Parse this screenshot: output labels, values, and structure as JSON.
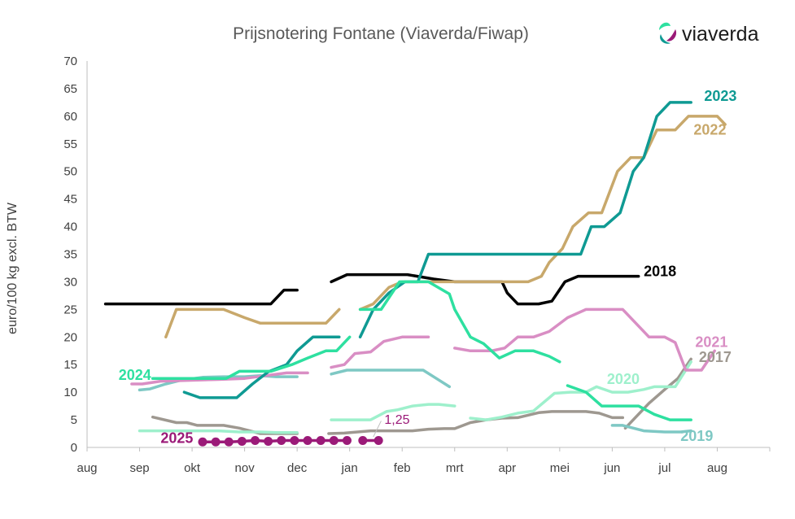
{
  "brand": {
    "logo_text": "viaverda"
  },
  "chart_data": {
    "type": "line",
    "title": "Prijsnotering Fontane (Viaverda/Fiwap)",
    "xlabel": "",
    "ylabel": "euro/100 kg excl. BTW",
    "ylim": [
      0,
      70
    ],
    "yticks": [
      0,
      5,
      10,
      15,
      20,
      25,
      30,
      35,
      40,
      45,
      50,
      55,
      60,
      65,
      70
    ],
    "x_unit": "months from 1 aug (season aug–aug)",
    "xlim": [
      0,
      13
    ],
    "months": [
      "aug",
      "sep",
      "okt",
      "nov",
      "dec",
      "jan",
      "feb",
      "mrt",
      "apr",
      "mei",
      "jun",
      "jul",
      "aug"
    ],
    "grid": false,
    "legend": "direct labels at line ends",
    "series": [
      {
        "name": "2018",
        "color": "#000000",
        "label_at": [
          10.6,
          31.0
        ],
        "segments": [
          [
            [
              0.35,
              26
            ],
            [
              3.5,
              26
            ],
            [
              3.75,
              28.5
            ],
            [
              4.0,
              28.5
            ]
          ],
          [
            [
              4.65,
              30
            ],
            [
              4.95,
              31.3
            ],
            [
              6.1,
              31.3
            ],
            [
              6.6,
              30.5
            ],
            [
              7.0,
              30
            ],
            [
              7.3,
              30
            ],
            [
              7.4,
              30
            ],
            [
              7.7,
              30
            ],
            [
              7.9,
              30
            ],
            [
              8.0,
              28
            ],
            [
              8.2,
              26
            ],
            [
              8.6,
              26
            ],
            [
              8.85,
              26.5
            ],
            [
              9.1,
              30
            ],
            [
              9.35,
              31
            ],
            [
              9.9,
              31
            ],
            [
              10.3,
              31
            ],
            [
              10.5,
              31
            ]
          ]
        ]
      },
      {
        "name": "2017",
        "color": "#9e9890",
        "label_at": [
          11.65,
          15.5
        ],
        "segments": [
          [
            [
              1.25,
              5.5
            ],
            [
              1.7,
              4.5
            ],
            [
              1.9,
              4.5
            ],
            [
              2.1,
              4.0
            ],
            [
              2.6,
              4.0
            ],
            [
              2.9,
              3.5
            ],
            [
              3.3,
              2.5
            ],
            [
              4.0,
              2.5
            ]
          ],
          [
            [
              4.6,
              2.5
            ],
            [
              4.9,
              2.6
            ],
            [
              5.4,
              3.0
            ],
            [
              6.2,
              3.0
            ],
            [
              6.5,
              3.3
            ],
            [
              6.8,
              3.4
            ],
            [
              7.0,
              3.4
            ],
            [
              7.3,
              4.5
            ],
            [
              7.6,
              5.0
            ],
            [
              7.9,
              5.3
            ],
            [
              8.2,
              5.4
            ],
            [
              8.6,
              6.3
            ],
            [
              8.85,
              6.5
            ],
            [
              9.3,
              6.5
            ],
            [
              9.5,
              6.5
            ],
            [
              9.75,
              6.2
            ],
            [
              10.0,
              5.4
            ],
            [
              10.2,
              5.4
            ]
          ],
          [
            [
              10.25,
              3.5
            ],
            [
              10.45,
              5.5
            ],
            [
              10.7,
              8.0
            ],
            [
              11.0,
              10.5
            ],
            [
              11.25,
              12.5
            ],
            [
              11.5,
              16.0
            ]
          ]
        ]
      },
      {
        "name": "2019",
        "color": "#7ec8c4",
        "label_at": [
          11.3,
          1.2
        ],
        "segments": [
          [
            [
              1.0,
              10.4
            ],
            [
              1.2,
              10.6
            ],
            [
              1.5,
              11.5
            ],
            [
              1.8,
              12.2
            ],
            [
              2.2,
              12.7
            ],
            [
              2.6,
              12.8
            ],
            [
              3.0,
              12.8
            ],
            [
              3.3,
              13.0
            ],
            [
              3.6,
              12.8
            ],
            [
              4.0,
              12.8
            ]
          ],
          [
            [
              4.65,
              13.3
            ],
            [
              4.95,
              14.0
            ],
            [
              5.3,
              14.0
            ],
            [
              6.4,
              14.0
            ],
            [
              6.65,
              12.5
            ],
            [
              6.9,
              11.0
            ]
          ],
          [
            [
              10.0,
              4.0
            ],
            [
              10.2,
              4.0
            ],
            [
              10.6,
              3.0
            ],
            [
              11.0,
              2.8
            ],
            [
              11.3,
              2.8
            ],
            [
              11.5,
              3.0
            ]
          ]
        ]
      },
      {
        "name": "2020",
        "color": "#9ef0cc",
        "label_at": [
          9.9,
          11.5
        ],
        "segments": [
          [
            [
              1.0,
              3.0
            ],
            [
              1.2,
              3.0
            ],
            [
              1.8,
              3.0
            ],
            [
              2.5,
              3.0
            ],
            [
              2.9,
              2.8
            ],
            [
              3.3,
              2.8
            ],
            [
              3.6,
              2.7
            ],
            [
              4.0,
              2.7
            ]
          ],
          [
            [
              4.65,
              5.0
            ],
            [
              4.95,
              5.0
            ],
            [
              5.4,
              5.0
            ],
            [
              5.7,
              6.5
            ],
            [
              5.9,
              6.8
            ],
            [
              6.2,
              7.5
            ],
            [
              6.5,
              7.8
            ],
            [
              6.7,
              7.8
            ],
            [
              7.0,
              7.5
            ]
          ],
          [
            [
              7.3,
              5.3
            ],
            [
              7.6,
              5.0
            ],
            [
              7.9,
              5.5
            ],
            [
              8.2,
              6.2
            ],
            [
              8.5,
              6.6
            ],
            [
              8.9,
              9.8
            ],
            [
              9.2,
              10.0
            ],
            [
              9.5,
              10.0
            ],
            [
              9.7,
              11.0
            ],
            [
              10.0,
              10.0
            ],
            [
              10.3,
              10.0
            ],
            [
              10.6,
              10.5
            ],
            [
              10.8,
              11.0
            ],
            [
              11.2,
              11.0
            ],
            [
              11.5,
              15.5
            ]
          ]
        ]
      },
      {
        "name": "2021",
        "color": "#d98ec4",
        "label_at": [
          11.58,
          18.2
        ],
        "segments": [
          [
            [
              0.85,
              11.5
            ],
            [
              1.05,
              11.5
            ],
            [
              1.4,
              12.0
            ],
            [
              2.5,
              12.3
            ],
            [
              3.0,
              12.5
            ],
            [
              3.4,
              13.0
            ],
            [
              3.8,
              13.5
            ],
            [
              4.2,
              13.5
            ]
          ],
          [
            [
              4.65,
              14.5
            ],
            [
              4.9,
              15.0
            ],
            [
              5.1,
              17.0
            ],
            [
              5.4,
              17.3
            ],
            [
              5.65,
              19.2
            ],
            [
              6.0,
              20.0
            ],
            [
              6.3,
              20.0
            ],
            [
              6.5,
              20.0
            ]
          ],
          [
            [
              7.0,
              18.0
            ],
            [
              7.3,
              17.5
            ],
            [
              7.7,
              17.5
            ],
            [
              7.95,
              18.0
            ],
            [
              8.2,
              20.0
            ],
            [
              8.5,
              20.0
            ],
            [
              8.8,
              21.0
            ],
            [
              9.15,
              23.5
            ],
            [
              9.5,
              25.0
            ],
            [
              10.0,
              25.0
            ],
            [
              10.2,
              25.0
            ],
            [
              10.45,
              22.5
            ],
            [
              10.7,
              20.0
            ],
            [
              11.0,
              20.0
            ],
            [
              11.2,
              19.0
            ],
            [
              11.4,
              14.0
            ],
            [
              11.7,
              14.0
            ],
            [
              11.95,
              17.5
            ]
          ]
        ]
      },
      {
        "name": "2022",
        "color": "#c8a86b",
        "label_at": [
          11.55,
          56.7
        ],
        "segments": [
          [
            [
              1.5,
              20.0
            ],
            [
              1.7,
              25.0
            ],
            [
              2.3,
              25.0
            ],
            [
              2.6,
              25.0
            ],
            [
              3.0,
              23.5
            ],
            [
              3.3,
              22.5
            ],
            [
              3.8,
              22.5
            ],
            [
              4.0,
              22.5
            ],
            [
              4.2,
              22.5
            ],
            [
              4.55,
              22.5
            ],
            [
              4.8,
              25.0
            ]
          ],
          [
            [
              5.2,
              25.0
            ],
            [
              5.45,
              26.0
            ],
            [
              5.75,
              29.0
            ],
            [
              6.0,
              30.0
            ],
            [
              6.5,
              30.0
            ],
            [
              7.0,
              30.0
            ],
            [
              7.3,
              30.0
            ],
            [
              7.6,
              30.0
            ],
            [
              8.0,
              30.0
            ],
            [
              8.4,
              30.0
            ],
            [
              8.65,
              31.0
            ],
            [
              8.8,
              33.5
            ],
            [
              9.05,
              36.0
            ],
            [
              9.25,
              40.0
            ],
            [
              9.55,
              42.5
            ],
            [
              9.8,
              42.5
            ],
            [
              10.1,
              50.0
            ],
            [
              10.35,
              52.5
            ],
            [
              10.6,
              52.5
            ],
            [
              10.85,
              57.5
            ],
            [
              11.2,
              57.5
            ],
            [
              11.45,
              60.0
            ],
            [
              11.8,
              60.0
            ],
            [
              12.0,
              60.0
            ],
            [
              12.15,
              58.5
            ]
          ]
        ]
      },
      {
        "name": "2023",
        "color": "#0f9a93",
        "label_at": [
          11.75,
          62.8
        ],
        "segments": [
          [
            [
              1.85,
              10.0
            ],
            [
              2.15,
              9.0
            ],
            [
              2.6,
              9.0
            ],
            [
              2.85,
              9.0
            ],
            [
              3.15,
              11.5
            ],
            [
              3.45,
              13.7
            ],
            [
              3.8,
              15.0
            ],
            [
              4.0,
              17.5
            ],
            [
              4.3,
              20.0
            ],
            [
              4.8,
              20.0
            ]
          ],
          [
            [
              5.2,
              20.0
            ],
            [
              5.45,
              25.0
            ],
            [
              5.75,
              28.0
            ],
            [
              6.05,
              30.0
            ],
            [
              6.3,
              30.0
            ],
            [
              6.5,
              35.0
            ],
            [
              7.0,
              35.0
            ],
            [
              8.0,
              35.0
            ],
            [
              9.0,
              35.0
            ],
            [
              9.4,
              35.0
            ],
            [
              9.6,
              40.0
            ],
            [
              9.85,
              40.0
            ],
            [
              10.15,
              42.5
            ],
            [
              10.4,
              50.0
            ],
            [
              10.6,
              52.5
            ],
            [
              10.85,
              60.0
            ],
            [
              11.1,
              62.5
            ],
            [
              11.5,
              62.5
            ]
          ]
        ]
      },
      {
        "name": "2024",
        "color": "#2ee0a0",
        "label_at": [
          0.6,
          12.2
        ],
        "segments": [
          [
            [
              1.25,
              12.5
            ],
            [
              2.45,
              12.5
            ],
            [
              2.65,
              12.5
            ],
            [
              2.9,
              13.8
            ],
            [
              3.3,
              13.8
            ],
            [
              3.5,
              13.8
            ],
            [
              3.9,
              15.0
            ],
            [
              4.2,
              16.2
            ],
            [
              4.55,
              17.5
            ],
            [
              4.75,
              17.5
            ],
            [
              5.0,
              20.0
            ]
          ],
          [
            [
              5.2,
              25.0
            ],
            [
              5.6,
              25.0
            ],
            [
              5.95,
              30.0
            ],
            [
              6.5,
              30.0
            ],
            [
              6.9,
              27.8
            ],
            [
              7.0,
              25.0
            ],
            [
              7.3,
              20.0
            ],
            [
              7.55,
              18.8
            ],
            [
              7.85,
              16.2
            ],
            [
              8.15,
              17.5
            ],
            [
              8.5,
              17.5
            ],
            [
              8.8,
              16.5
            ],
            [
              9.0,
              15.5
            ]
          ],
          [
            [
              9.15,
              11.2
            ],
            [
              9.5,
              10.0
            ],
            [
              9.8,
              7.5
            ],
            [
              10.0,
              7.5
            ],
            [
              10.5,
              7.5
            ],
            [
              10.8,
              6.0
            ],
            [
              11.1,
              5.0
            ],
            [
              11.5,
              5.0
            ]
          ]
        ]
      },
      {
        "name": "2025",
        "color": "#9b1a78",
        "label_at": [
          1.4,
          0.8
        ],
        "markers": true,
        "segments": [
          [
            [
              2.2,
              1.0
            ],
            [
              2.45,
              1.0
            ],
            [
              2.7,
              1.0
            ],
            [
              2.95,
              1.1
            ],
            [
              3.2,
              1.25
            ],
            [
              3.45,
              1.1
            ],
            [
              3.7,
              1.25
            ],
            [
              3.95,
              1.25
            ],
            [
              4.2,
              1.25
            ],
            [
              4.45,
              1.25
            ],
            [
              4.7,
              1.25
            ],
            [
              4.95,
              1.25
            ]
          ],
          [
            [
              5.25,
              1.25
            ],
            [
              5.55,
              1.25
            ]
          ]
        ]
      }
    ],
    "annotations": [
      {
        "text": "1,25",
        "color": "#9b1a78",
        "at": [
          5.6,
          4.3
        ],
        "from": [
          5.6,
          4.8
        ],
        "to": [
          5.45,
          1.9
        ]
      }
    ]
  }
}
